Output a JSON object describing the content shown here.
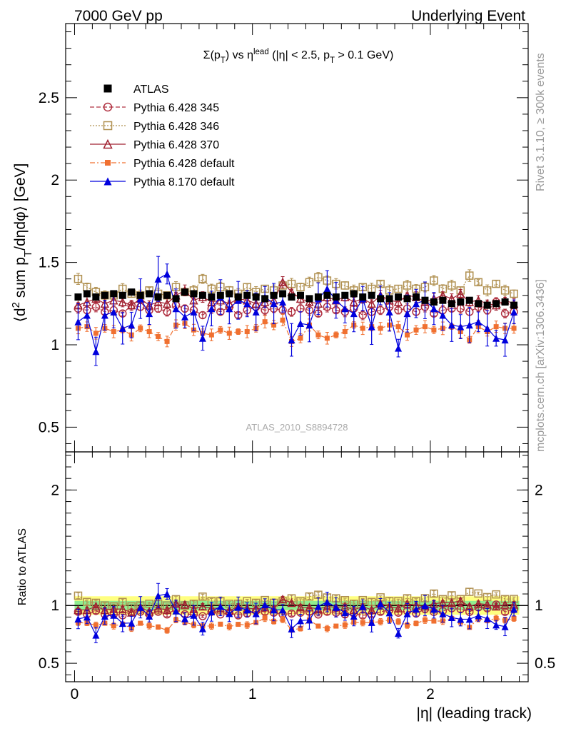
{
  "header": {
    "left": "7000 GeV pp",
    "right": "Underlying Event"
  },
  "side_text": {
    "top": "Rivet 3.1.10, ≥ 300k events",
    "bottom": "mcplots.cern.ch [arXiv:1306.3436]"
  },
  "watermark": "ATLAS_2010_S8894728",
  "chart_data": [
    {
      "type": "scatter",
      "panel": "main",
      "title": "Σ(p_T) vs η^lead (|η| < 2.5, p_T > 0.1 GeV)",
      "ylabel": "⟨d² sum p_T/dηdφ⟩ [GeV]",
      "xlim": [
        -0.05,
        2.55
      ],
      "ylim": [
        0.35,
        2.95
      ],
      "yticks": [
        "0.5",
        "1",
        "1.5",
        "2",
        "2.5"
      ],
      "x": [
        0.02,
        0.07,
        0.12,
        0.17,
        0.22,
        0.27,
        0.32,
        0.37,
        0.42,
        0.47,
        0.52,
        0.57,
        0.62,
        0.67,
        0.72,
        0.77,
        0.82,
        0.87,
        0.92,
        0.97,
        1.02,
        1.07,
        1.12,
        1.17,
        1.22,
        1.27,
        1.32,
        1.37,
        1.42,
        1.47,
        1.52,
        1.57,
        1.62,
        1.67,
        1.72,
        1.77,
        1.82,
        1.87,
        1.92,
        1.97,
        2.02,
        2.07,
        2.12,
        2.17,
        2.22,
        2.27,
        2.32,
        2.37,
        2.42,
        2.47
      ],
      "series": [
        {
          "name": "ATLAS",
          "color": "#000000",
          "marker": "square-filled",
          "values": [
            1.29,
            1.31,
            1.29,
            1.3,
            1.31,
            1.3,
            1.32,
            1.3,
            1.31,
            1.29,
            1.3,
            1.28,
            1.32,
            1.31,
            1.3,
            1.29,
            1.3,
            1.31,
            1.29,
            1.3,
            1.29,
            1.28,
            1.3,
            1.31,
            1.29,
            1.3,
            1.28,
            1.29,
            1.3,
            1.29,
            1.3,
            1.31,
            1.29,
            1.3,
            1.28,
            1.28,
            1.29,
            1.28,
            1.29,
            1.27,
            1.26,
            1.27,
            1.25,
            1.26,
            1.27,
            1.25,
            1.24,
            1.25,
            1.26,
            1.24
          ]
        },
        {
          "name": "Pythia 6.428 345",
          "color": "#b03040",
          "marker": "circle-open",
          "line": "dashed",
          "values": [
            1.22,
            1.21,
            1.23,
            1.2,
            1.21,
            1.19,
            1.24,
            1.23,
            1.21,
            1.22,
            1.2,
            1.24,
            1.22,
            1.21,
            1.18,
            1.22,
            1.2,
            1.23,
            1.18,
            1.21,
            1.23,
            1.21,
            1.22,
            1.21,
            1.2,
            1.22,
            1.21,
            1.19,
            1.23,
            1.21,
            1.2,
            1.22,
            1.18,
            1.2,
            1.21,
            1.23,
            1.21,
            1.22,
            1.2,
            1.23,
            1.19,
            1.21,
            1.22,
            1.22,
            1.2,
            1.23,
            1.21,
            1.26,
            1.19,
            1.2
          ]
        },
        {
          "name": "Pythia 6.428 346",
          "color": "#b09050",
          "marker": "square-open",
          "line": "dotted",
          "values": [
            1.4,
            1.35,
            1.32,
            1.3,
            1.3,
            1.34,
            1.31,
            1.3,
            1.33,
            1.31,
            1.3,
            1.35,
            1.32,
            1.33,
            1.4,
            1.34,
            1.35,
            1.33,
            1.31,
            1.35,
            1.32,
            1.34,
            1.33,
            1.36,
            1.37,
            1.35,
            1.38,
            1.41,
            1.39,
            1.37,
            1.36,
            1.33,
            1.35,
            1.34,
            1.37,
            1.33,
            1.34,
            1.36,
            1.34,
            1.35,
            1.39,
            1.34,
            1.36,
            1.33,
            1.42,
            1.38,
            1.33,
            1.37,
            1.33,
            1.31
          ]
        },
        {
          "name": "Pythia 6.428 370",
          "color": "#a02030",
          "marker": "triangle-open",
          "line": "solid",
          "values": [
            1.24,
            1.26,
            1.28,
            1.25,
            1.27,
            1.26,
            1.24,
            1.28,
            1.24,
            1.26,
            1.25,
            1.3,
            1.33,
            1.27,
            1.29,
            1.26,
            1.27,
            1.25,
            1.28,
            1.27,
            1.25,
            1.26,
            1.27,
            1.38,
            1.32,
            1.28,
            1.26,
            1.25,
            1.29,
            1.27,
            1.29,
            1.26,
            1.28,
            1.25,
            1.3,
            1.27,
            1.26,
            1.3,
            1.29,
            1.26,
            1.28,
            1.3,
            1.28,
            1.31,
            1.26,
            1.27,
            1.25,
            1.24,
            1.27,
            1.25
          ]
        },
        {
          "name": "Pythia 6.428 default",
          "color": "#f07030",
          "marker": "square-filled",
          "line": "dash-dot",
          "values": [
            1.1,
            1.11,
            1.07,
            1.1,
            1.08,
            1.09,
            1.06,
            1.1,
            1.08,
            1.05,
            1.02,
            1.12,
            1.13,
            1.09,
            1.07,
            1.06,
            1.09,
            1.07,
            1.08,
            1.08,
            1.1,
            1.14,
            1.12,
            1.15,
            1.02,
            1.04,
            1.12,
            1.06,
            1.04,
            1.06,
            1.08,
            1.12,
            1.1,
            1.11,
            1.1,
            1.12,
            1.11,
            1.06,
            1.09,
            1.11,
            1.09,
            1.1,
            1.11,
            1.08,
            1.03,
            1.11,
            1.08,
            1.11,
            1.1,
            1.1
          ]
        },
        {
          "name": "Pythia 8.170 default",
          "color": "#0000dd",
          "marker": "triangle-filled",
          "line": "solid",
          "values": [
            1.14,
            1.18,
            0.96,
            1.18,
            1.2,
            1.1,
            1.12,
            1.28,
            1.19,
            1.4,
            1.43,
            1.22,
            1.17,
            1.2,
            1.04,
            1.22,
            1.29,
            1.22,
            1.27,
            1.25,
            1.2,
            1.29,
            1.25,
            1.26,
            1.03,
            1.13,
            1.12,
            1.28,
            1.34,
            1.27,
            1.22,
            1.19,
            1.28,
            1.11,
            1.3,
            1.2,
            0.98,
            1.19,
            1.25,
            1.27,
            1.22,
            1.18,
            1.12,
            1.11,
            1.12,
            1.14,
            1.1,
            1.04,
            1.03,
            1.2
          ]
        }
      ]
    },
    {
      "type": "scatter",
      "panel": "ratio",
      "ylabel": "Ratio to ATLAS",
      "xlabel": "|η| (leading track)",
      "xlim": [
        -0.05,
        2.55
      ],
      "ylim": [
        0.34,
        2.33
      ],
      "xticks": [
        "0",
        "1",
        "2"
      ],
      "yticks": [
        "0.5",
        "1",
        "2"
      ],
      "reference_line": 1,
      "bands": [
        {
          "label": "stat",
          "color": "#90ee90",
          "half_width": 0.04
        },
        {
          "label": "syst",
          "color": "#ffff80",
          "half_width": 0.08
        }
      ]
    }
  ]
}
